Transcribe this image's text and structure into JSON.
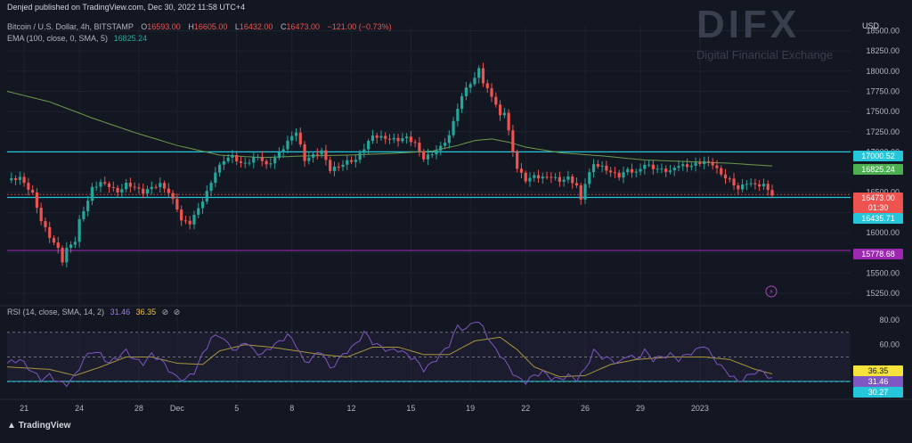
{
  "publish_note": "Denjed published on TradingView.com, Dec 30, 2022 11:58 UTC+4",
  "watermark": {
    "title": "DIFX",
    "subtitle": "Digital Financial Exchange"
  },
  "brand": "TradingView",
  "currency": "USD",
  "symbol": {
    "title": "Bitcoin / U.S. Dollar, 4h, BITSTAMP",
    "ohlc": [
      {
        "label": "O",
        "value": "16593.00"
      },
      {
        "label": "H",
        "value": "16605.00"
      },
      {
        "label": "L",
        "value": "16432.00"
      },
      {
        "label": "C",
        "value": "16473.00"
      }
    ],
    "change": "−121.00 (−0.73%)"
  },
  "ema": {
    "label": "EMA (100, close, 0, SMA, 5)",
    "value": "16825.24"
  },
  "rsi": {
    "label": "RSI (14, close, SMA, 14, 2)",
    "value": "31.46",
    "ma_value": "36.35"
  },
  "colors": {
    "up": "#26a69a",
    "down": "#ef5350",
    "ema": "#6c9a4c",
    "cyan": "#26c6da",
    "purple": "#9c27b0",
    "rsi": "#7e57c2",
    "rsi_ma": "#a8953c",
    "grid": "#1e222d",
    "badge_ema": "#4caf50",
    "badge_rsi_ma": "#f5e23a",
    "badge_rsi": "#7e57c2"
  },
  "chart_data": [
    {
      "type": "candlestick",
      "title": "Bitcoin / U.S. Dollar, 4h, BITSTAMP",
      "ylim": [
        15150,
        18550
      ],
      "y_ticks": [
        "18500.00",
        "18250.00",
        "18000.00",
        "17750.00",
        "17500.00",
        "17250.00",
        "17000.00",
        "16750.00",
        "16500.00",
        "16250.00",
        "16000.00",
        "15750.00",
        "15500.00",
        "15250.00"
      ],
      "x_ticks": [
        "21",
        "24",
        "28",
        "Dec",
        "5",
        "8",
        "12",
        "15",
        "19",
        "22",
        "26",
        "29",
        "2023"
      ],
      "horizontal_lines": [
        {
          "value": 17000.52,
          "label": "17000.52",
          "color": "#26c6da"
        },
        {
          "value": 16435.71,
          "label": "16435.71",
          "color": "#26c6da"
        },
        {
          "value": 15778.68,
          "label": "15778.68",
          "color": "#9c27b0"
        }
      ],
      "last_price": {
        "value": 16473.0,
        "label": "16473.00",
        "countdown": "01:30"
      },
      "ema_last": {
        "value": 16825.24,
        "label": "16825.24"
      },
      "close_path": [
        [
          0,
          16650
        ],
        [
          3,
          16680
        ],
        [
          6,
          16480
        ],
        [
          8,
          16150
        ],
        [
          10,
          15950
        ],
        [
          12,
          15800
        ],
        [
          13,
          15650
        ],
        [
          14,
          15800
        ],
        [
          16,
          15900
        ],
        [
          17,
          16150
        ],
        [
          19,
          16400
        ],
        [
          20,
          16550
        ],
        [
          22,
          16620
        ],
        [
          24,
          16580
        ],
        [
          26,
          16500
        ],
        [
          28,
          16600
        ],
        [
          30,
          16560
        ],
        [
          32,
          16500
        ],
        [
          34,
          16560
        ],
        [
          36,
          16600
        ],
        [
          38,
          16500
        ],
        [
          40,
          16300
        ],
        [
          41,
          16150
        ],
        [
          43,
          16120
        ],
        [
          45,
          16300
        ],
        [
          47,
          16500
        ],
        [
          49,
          16750
        ],
        [
          51,
          16900
        ],
        [
          53,
          16950
        ],
        [
          55,
          16850
        ],
        [
          57,
          16880
        ],
        [
          59,
          16950
        ],
        [
          61,
          16830
        ],
        [
          63,
          16920
        ],
        [
          65,
          17050
        ],
        [
          67,
          17200
        ],
        [
          68,
          17250
        ],
        [
          70,
          16900
        ],
        [
          72,
          16960
        ],
        [
          74,
          17010
        ],
        [
          76,
          16780
        ],
        [
          78,
          16820
        ],
        [
          80,
          16880
        ],
        [
          82,
          16900
        ],
        [
          84,
          17050
        ],
        [
          86,
          17200
        ],
        [
          88,
          17180
        ],
        [
          90,
          17160
        ],
        [
          92,
          17150
        ],
        [
          94,
          17180
        ],
        [
          96,
          17100
        ],
        [
          98,
          16920
        ],
        [
          100,
          16980
        ],
        [
          102,
          17060
        ],
        [
          104,
          17200
        ],
        [
          106,
          17550
        ],
        [
          108,
          17800
        ],
        [
          110,
          17900
        ],
        [
          111,
          18050
        ],
        [
          112,
          17850
        ],
        [
          114,
          17700
        ],
        [
          116,
          17450
        ],
        [
          117,
          17500
        ],
        [
          119,
          17000
        ],
        [
          120,
          16800
        ],
        [
          122,
          16650
        ],
        [
          124,
          16700
        ],
        [
          126,
          16680
        ],
        [
          128,
          16700
        ],
        [
          130,
          16640
        ],
        [
          132,
          16680
        ],
        [
          134,
          16580
        ],
        [
          135,
          16400
        ],
        [
          136,
          16620
        ],
        [
          138,
          16850
        ],
        [
          140,
          16810
        ],
        [
          142,
          16750
        ],
        [
          144,
          16700
        ],
        [
          146,
          16780
        ],
        [
          148,
          16740
        ],
        [
          150,
          16850
        ],
        [
          152,
          16800
        ],
        [
          154,
          16780
        ],
        [
          156,
          16760
        ],
        [
          158,
          16840
        ],
        [
          160,
          16820
        ],
        [
          162,
          16850
        ],
        [
          164,
          16880
        ],
        [
          166,
          16850
        ],
        [
          168,
          16720
        ],
        [
          170,
          16650
        ],
        [
          172,
          16540
        ],
        [
          174,
          16620
        ],
        [
          176,
          16590
        ],
        [
          178,
          16590
        ],
        [
          180,
          16473
        ]
      ],
      "ema_path": [
        [
          0,
          17750
        ],
        [
          10,
          17620
        ],
        [
          20,
          17420
        ],
        [
          30,
          17240
        ],
        [
          40,
          17080
        ],
        [
          50,
          16960
        ],
        [
          60,
          16930
        ],
        [
          70,
          16950
        ],
        [
          80,
          16960
        ],
        [
          90,
          16980
        ],
        [
          100,
          17010
        ],
        [
          106,
          17080
        ],
        [
          110,
          17140
        ],
        [
          114,
          17160
        ],
        [
          118,
          17120
        ],
        [
          122,
          17060
        ],
        [
          130,
          16990
        ],
        [
          140,
          16950
        ],
        [
          150,
          16900
        ],
        [
          160,
          16880
        ],
        [
          170,
          16860
        ],
        [
          180,
          16825
        ]
      ]
    },
    {
      "type": "line",
      "title": "RSI (14, close, SMA, 14, 2)",
      "ylim": [
        23,
        85
      ],
      "y_ticks": [
        "80.00",
        "60.00"
      ],
      "bands": [
        70,
        50,
        30
      ],
      "last_values": [
        {
          "name": "RSI-based MA",
          "label": "36.35"
        },
        {
          "name": "RSI",
          "label": "31.46"
        },
        {
          "name": "band",
          "label": "30.27"
        }
      ],
      "rsi_path": [
        [
          0,
          45
        ],
        [
          3,
          48
        ],
        [
          6,
          38
        ],
        [
          8,
          32
        ],
        [
          10,
          35
        ],
        [
          12,
          30
        ],
        [
          14,
          28
        ],
        [
          16,
          35
        ],
        [
          18,
          48
        ],
        [
          20,
          55
        ],
        [
          22,
          52
        ],
        [
          24,
          45
        ],
        [
          26,
          50
        ],
        [
          28,
          55
        ],
        [
          30,
          48
        ],
        [
          32,
          45
        ],
        [
          34,
          52
        ],
        [
          36,
          48
        ],
        [
          38,
          40
        ],
        [
          40,
          33
        ],
        [
          42,
          32
        ],
        [
          44,
          38
        ],
        [
          46,
          52
        ],
        [
          48,
          65
        ],
        [
          50,
          68
        ],
        [
          52,
          60
        ],
        [
          54,
          55
        ],
        [
          56,
          63
        ],
        [
          58,
          55
        ],
        [
          60,
          52
        ],
        [
          62,
          58
        ],
        [
          64,
          62
        ],
        [
          66,
          68
        ],
        [
          68,
          60
        ],
        [
          70,
          45
        ],
        [
          72,
          50
        ],
        [
          74,
          55
        ],
        [
          76,
          40
        ],
        [
          78,
          48
        ],
        [
          80,
          55
        ],
        [
          82,
          60
        ],
        [
          84,
          70
        ],
        [
          86,
          62
        ],
        [
          88,
          58
        ],
        [
          90,
          55
        ],
        [
          92,
          56
        ],
        [
          94,
          52
        ],
        [
          96,
          48
        ],
        [
          98,
          40
        ],
        [
          100,
          45
        ],
        [
          102,
          52
        ],
        [
          104,
          60
        ],
        [
          106,
          75
        ],
        [
          108,
          72
        ],
        [
          110,
          80
        ],
        [
          112,
          74
        ],
        [
          114,
          60
        ],
        [
          116,
          52
        ],
        [
          118,
          42
        ],
        [
          120,
          33
        ],
        [
          122,
          30
        ],
        [
          124,
          35
        ],
        [
          126,
          38
        ],
        [
          128,
          33
        ],
        [
          130,
          32
        ],
        [
          132,
          35
        ],
        [
          134,
          32
        ],
        [
          136,
          40
        ],
        [
          138,
          55
        ],
        [
          140,
          50
        ],
        [
          142,
          48
        ],
        [
          144,
          45
        ],
        [
          146,
          52
        ],
        [
          148,
          48
        ],
        [
          150,
          55
        ],
        [
          152,
          48
        ],
        [
          154,
          50
        ],
        [
          156,
          52
        ],
        [
          158,
          48
        ],
        [
          160,
          52
        ],
        [
          162,
          55
        ],
        [
          164,
          60
        ],
        [
          166,
          50
        ],
        [
          168,
          42
        ],
        [
          170,
          36
        ],
        [
          172,
          30
        ],
        [
          174,
          34
        ],
        [
          176,
          38
        ],
        [
          178,
          38
        ],
        [
          180,
          31.46
        ]
      ],
      "rsi_ma_path": [
        [
          0,
          42
        ],
        [
          10,
          40
        ],
        [
          16,
          35
        ],
        [
          22,
          42
        ],
        [
          28,
          50
        ],
        [
          34,
          50
        ],
        [
          40,
          45
        ],
        [
          46,
          44
        ],
        [
          50,
          55
        ],
        [
          56,
          60
        ],
        [
          62,
          58
        ],
        [
          68,
          55
        ],
        [
          74,
          52
        ],
        [
          80,
          50
        ],
        [
          86,
          58
        ],
        [
          92,
          58
        ],
        [
          98,
          52
        ],
        [
          104,
          52
        ],
        [
          110,
          63
        ],
        [
          116,
          66
        ],
        [
          120,
          56
        ],
        [
          124,
          42
        ],
        [
          130,
          34
        ],
        [
          136,
          35
        ],
        [
          142,
          44
        ],
        [
          148,
          48
        ],
        [
          156,
          50
        ],
        [
          164,
          50
        ],
        [
          170,
          48
        ],
        [
          176,
          40
        ],
        [
          180,
          36.35
        ]
      ]
    }
  ]
}
